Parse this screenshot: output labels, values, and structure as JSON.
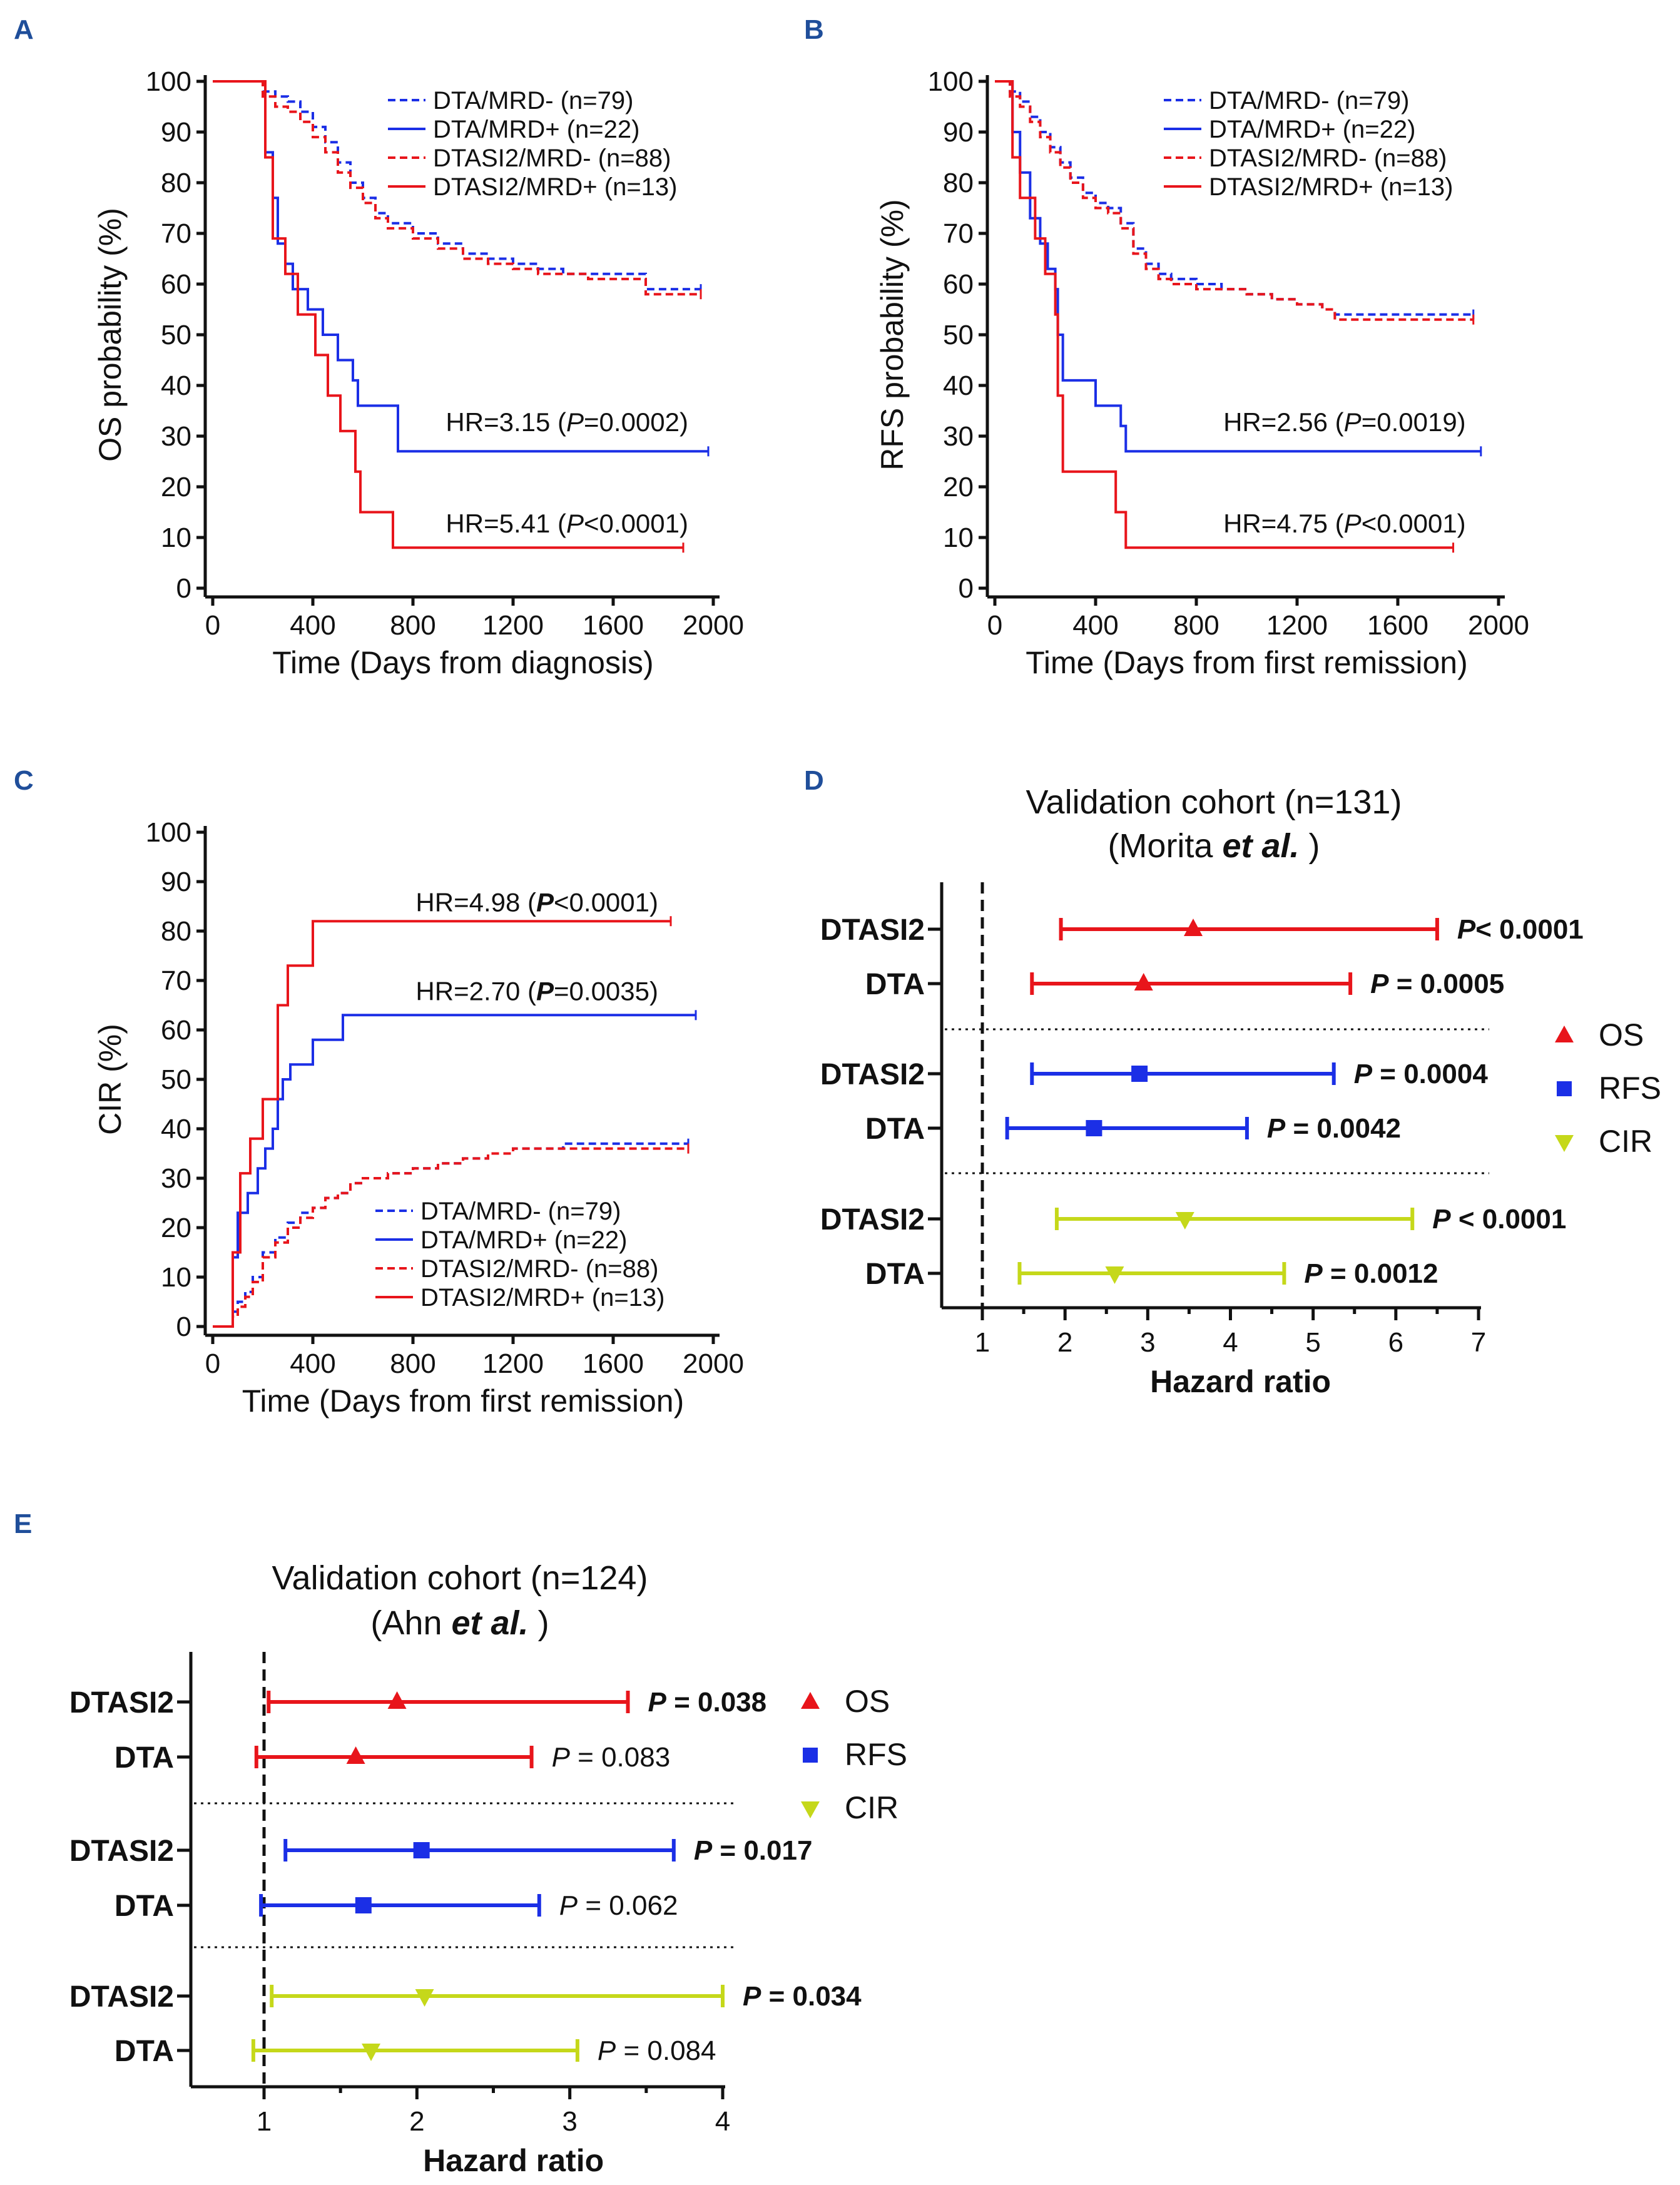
{
  "panels": {
    "A": {
      "label": "A"
    },
    "B": {
      "label": "B"
    },
    "C": {
      "label": "C"
    },
    "D": {
      "label": "D"
    },
    "E": {
      "label": "E"
    }
  },
  "colors": {
    "blue": "#1b2fe6",
    "red": "#e8151b",
    "lime": "#c5d81a",
    "black": "#111111"
  },
  "legend": [
    {
      "label": "DTA/MRD- (n=79)",
      "color": "#1b2fe6",
      "dashed": true
    },
    {
      "label": "DTA/MRD+ (n=22)",
      "color": "#1b2fe6",
      "dashed": false
    },
    {
      "label": "DTASI2/MRD- (n=88)",
      "color": "#e8151b",
      "dashed": true
    },
    {
      "label": "DTASI2/MRD+ (n=13)",
      "color": "#e8151b",
      "dashed": false
    }
  ],
  "forest_legend": [
    {
      "label": "OS",
      "symbol": "triangle-up",
      "color": "#e8151b"
    },
    {
      "label": "RFS",
      "symbol": "square",
      "color": "#1b2fe6"
    },
    {
      "label": "CIR",
      "symbol": "triangle-down",
      "color": "#c5d81a"
    }
  ],
  "chart_data": [
    {
      "panel": "A",
      "type": "line",
      "xlabel": "Time (Days from diagnosis)",
      "ylabel": "OS probability (%)",
      "xlim": [
        0,
        2000
      ],
      "ylim": [
        0,
        100
      ],
      "xticks": [
        "0",
        "400",
        "800",
        "1200",
        "1600",
        "2000"
      ],
      "yticks": [
        "0",
        "10",
        "20",
        "30",
        "40",
        "50",
        "60",
        "70",
        "80",
        "90",
        "100"
      ],
      "annotations": [
        {
          "pre": "HR=3.15 (",
          "p": "P",
          "post": "=0.0002)",
          "x": 1900,
          "y": 31,
          "bold": false
        },
        {
          "pre": "HR=5.41 (",
          "p": "P",
          "post": "<0.0001)",
          "x": 1900,
          "y": 11,
          "bold": false
        }
      ],
      "series": [
        {
          "name": "DTA/MRD- (n=79)",
          "dashed": true,
          "color": "#1b2fe6",
          "x": [
            0,
            180,
            200,
            250,
            300,
            350,
            400,
            450,
            500,
            550,
            600,
            650,
            700,
            800,
            900,
            1000,
            1100,
            1200,
            1300,
            1400,
            1500,
            1600,
            1700,
            1730,
            1800,
            1850,
            1950
          ],
          "y": [
            100,
            100,
            98,
            97,
            96,
            94,
            91,
            88,
            84,
            80,
            77,
            74,
            72,
            70,
            68,
            66,
            65,
            64,
            63,
            62,
            62,
            62,
            62,
            59,
            59,
            59,
            59
          ]
        },
        {
          "name": "DTA/MRD+ (n=22)",
          "dashed": false,
          "color": "#1b2fe6",
          "x": [
            0,
            180,
            210,
            240,
            260,
            290,
            320,
            380,
            440,
            500,
            560,
            580,
            740,
            1980
          ],
          "y": [
            100,
            100,
            86,
            77,
            68,
            64,
            59,
            55,
            50,
            45,
            41,
            36,
            27,
            27
          ]
        },
        {
          "name": "DTASI2/MRD- (n=88)",
          "dashed": true,
          "color": "#e8151b",
          "x": [
            0,
            180,
            200,
            250,
            300,
            350,
            400,
            450,
            500,
            550,
            600,
            650,
            700,
            800,
            900,
            1000,
            1100,
            1200,
            1300,
            1400,
            1500,
            1600,
            1700,
            1730,
            1800,
            1850,
            1950
          ],
          "y": [
            100,
            100,
            97,
            95,
            94,
            92,
            89,
            86,
            82,
            79,
            76,
            73,
            71,
            69,
            67,
            65,
            64,
            63,
            62,
            62,
            61,
            61,
            61,
            58,
            58,
            58,
            58
          ]
        },
        {
          "name": "DTASI2/MRD+ (n=13)",
          "dashed": false,
          "color": "#e8151b",
          "x": [
            0,
            180,
            210,
            240,
            290,
            340,
            410,
            460,
            510,
            570,
            590,
            720,
            1880
          ],
          "y": [
            100,
            100,
            85,
            69,
            62,
            54,
            46,
            38,
            31,
            23,
            15,
            8,
            8
          ]
        }
      ]
    },
    {
      "panel": "B",
      "type": "line",
      "xlabel": "Time (Days from first remission)",
      "ylabel": "RFS probability (%)",
      "xlim": [
        0,
        2000
      ],
      "ylim": [
        0,
        100
      ],
      "xticks": [
        "0",
        "400",
        "800",
        "1200",
        "1600",
        "2000"
      ],
      "yticks": [
        "0",
        "10",
        "20",
        "30",
        "40",
        "50",
        "60",
        "70",
        "80",
        "90",
        "100"
      ],
      "annotations": [
        {
          "pre": "HR=2.56 (",
          "p": "P",
          "post": "=0.0019)",
          "x": 1870,
          "y": 31,
          "bold": false
        },
        {
          "pre": "HR=4.75 (",
          "p": "P",
          "post": "<0.0001)",
          "x": 1870,
          "y": 11,
          "bold": false
        }
      ],
      "series": [
        {
          "name": "DTA/MRD- (n=79)",
          "dashed": true,
          "color": "#1b2fe6",
          "x": [
            0,
            30,
            60,
            100,
            140,
            180,
            220,
            260,
            300,
            350,
            400,
            450,
            500,
            550,
            600,
            650,
            700,
            800,
            900,
            1000,
            1100,
            1200,
            1300,
            1350,
            1400,
            1500,
            1600,
            1700,
            1800,
            1900
          ],
          "y": [
            100,
            100,
            98,
            96,
            93,
            90,
            87,
            84,
            81,
            78,
            76,
            75,
            72,
            67,
            64,
            62,
            61,
            60,
            59,
            58,
            57,
            56,
            55,
            54,
            54,
            54,
            54,
            54,
            54,
            54
          ]
        },
        {
          "name": "DTA/MRD+ (n=22)",
          "dashed": false,
          "color": "#1b2fe6",
          "x": [
            0,
            40,
            70,
            100,
            140,
            180,
            210,
            240,
            250,
            270,
            400,
            500,
            520,
            1930
          ],
          "y": [
            100,
            100,
            90,
            82,
            73,
            68,
            63,
            59,
            50,
            41,
            36,
            32,
            27,
            27
          ]
        },
        {
          "name": "DTASI2/MRD- (n=88)",
          "dashed": true,
          "color": "#e8151b",
          "x": [
            0,
            30,
            60,
            100,
            140,
            180,
            220,
            260,
            300,
            350,
            400,
            450,
            500,
            550,
            600,
            650,
            700,
            800,
            900,
            1000,
            1100,
            1200,
            1300,
            1350,
            1400,
            1500,
            1600,
            1700,
            1800,
            1900
          ],
          "y": [
            100,
            100,
            97,
            95,
            92,
            89,
            86,
            83,
            80,
            77,
            75,
            74,
            71,
            66,
            63,
            61,
            60,
            59,
            59,
            58,
            57,
            56,
            55,
            53,
            53,
            53,
            53,
            53,
            53,
            53
          ]
        },
        {
          "name": "DTASI2/MRD+ (n=13)",
          "dashed": false,
          "color": "#e8151b",
          "x": [
            0,
            40,
            70,
            100,
            160,
            200,
            240,
            250,
            270,
            380,
            480,
            520,
            1820
          ],
          "y": [
            100,
            100,
            85,
            77,
            69,
            62,
            54,
            38,
            23,
            23,
            15,
            8,
            8
          ]
        }
      ]
    },
    {
      "panel": "C",
      "type": "line",
      "xlabel": "Time (Days from first remission)",
      "ylabel": "CIR (%)",
      "xlim": [
        0,
        2000
      ],
      "ylim": [
        0,
        100
      ],
      "xticks": [
        "0",
        "400",
        "800",
        "1200",
        "1600",
        "2000"
      ],
      "yticks": [
        "0",
        "10",
        "20",
        "30",
        "40",
        "50",
        "60",
        "70",
        "80",
        "90",
        "100"
      ],
      "annotations": [
        {
          "pre": "HR=4.98 (",
          "p": "P",
          "post": "<0.0001)",
          "x": 1780,
          "y": 84,
          "bold": true
        },
        {
          "pre": "HR=2.70 (",
          "p": "P",
          "post": "=0.0035)",
          "x": 1780,
          "y": 66,
          "bold": true
        }
      ],
      "series": [
        {
          "name": "DTA/MRD- (n=79)",
          "dashed": true,
          "color": "#1b2fe6",
          "x": [
            0,
            60,
            80,
            100,
            130,
            160,
            200,
            250,
            300,
            350,
            400,
            450,
            500,
            550,
            600,
            700,
            800,
            900,
            1000,
            1100,
            1200,
            1300,
            1400,
            1500,
            1600,
            1700,
            1800,
            1900
          ],
          "y": [
            0,
            0,
            3,
            5,
            7,
            10,
            15,
            18,
            21,
            23,
            24,
            26,
            27,
            29,
            30,
            31,
            32,
            33,
            34,
            35,
            36,
            36,
            37,
            37,
            37,
            37,
            37,
            37
          ]
        },
        {
          "name": "DTA/MRD+ (n=22)",
          "dashed": false,
          "color": "#1b2fe6",
          "x": [
            0,
            60,
            80,
            100,
            140,
            180,
            210,
            240,
            260,
            280,
            310,
            400,
            500,
            520,
            1930
          ],
          "y": [
            0,
            0,
            14,
            23,
            27,
            32,
            36,
            40,
            46,
            50,
            53,
            58,
            58,
            63,
            63
          ]
        },
        {
          "name": "DTASI2/MRD- (n=88)",
          "dashed": true,
          "color": "#e8151b",
          "x": [
            0,
            60,
            80,
            100,
            130,
            160,
            200,
            250,
            300,
            350,
            400,
            450,
            500,
            550,
            600,
            700,
            800,
            900,
            1000,
            1100,
            1200,
            1300,
            1400,
            1500,
            1600,
            1700,
            1800,
            1900
          ],
          "y": [
            0,
            0,
            2,
            4,
            6,
            9,
            14,
            17,
            20,
            22,
            24,
            26,
            27,
            29,
            30,
            31,
            32,
            33,
            34,
            35,
            36,
            36,
            36,
            36,
            36,
            36,
            36,
            36
          ]
        },
        {
          "name": "DTASI2/MRD+ (n=13)",
          "dashed": false,
          "color": "#e8151b",
          "x": [
            0,
            60,
            80,
            110,
            150,
            200,
            260,
            300,
            400,
            1830
          ],
          "y": [
            0,
            0,
            15,
            31,
            38,
            46,
            65,
            73,
            82,
            82
          ]
        }
      ]
    },
    {
      "panel": "D",
      "type": "forest",
      "title": "Validation cohort (n=131)",
      "subtitle_pre": "(Morita ",
      "subtitle_ital": "et al.",
      "subtitle_post": " )",
      "xlabel": "Hazard ratio",
      "xlim": [
        0.5,
        7
      ],
      "xticks": [
        "1",
        "2",
        "3",
        "4",
        "5",
        "6",
        "7"
      ],
      "refline": 1,
      "rows": [
        {
          "label": "DTASI2",
          "outcome": "OS",
          "hr": 3.55,
          "lo": 1.95,
          "hi": 6.5,
          "p_pre": "",
          "p_ital": "P",
          "p_post": "< 0.0001",
          "bold": true
        },
        {
          "label": "DTA",
          "outcome": "OS",
          "hr": 2.95,
          "lo": 1.6,
          "hi": 5.45,
          "p_pre": "",
          "p_ital": "P",
          "p_post": " = 0.0005",
          "bold": true
        },
        {
          "label": "DTASI2",
          "outcome": "RFS",
          "hr": 2.9,
          "lo": 1.6,
          "hi": 5.25,
          "p_pre": "",
          "p_ital": "P",
          "p_post": " = 0.0004",
          "bold": true
        },
        {
          "label": "DTA",
          "outcome": "RFS",
          "hr": 2.35,
          "lo": 1.3,
          "hi": 4.2,
          "p_pre": "",
          "p_ital": "P",
          "p_post": " = 0.0042",
          "bold": true
        },
        {
          "label": "DTASI2",
          "outcome": "CIR",
          "hr": 3.45,
          "lo": 1.9,
          "hi": 6.2,
          "p_pre": "",
          "p_ital": "P",
          "p_post": " < 0.0001",
          "bold": true
        },
        {
          "label": "DTA",
          "outcome": "CIR",
          "hr": 2.6,
          "lo": 1.45,
          "hi": 4.65,
          "p_pre": "",
          "p_ital": "P",
          "p_post": " = 0.0012",
          "bold": true
        }
      ]
    },
    {
      "panel": "E",
      "type": "forest",
      "title": "Validation cohort (n=124)",
      "subtitle_pre": "(Ahn ",
      "subtitle_ital": "et al.",
      "subtitle_post": " )",
      "xlabel": "Hazard ratio",
      "xlim": [
        0.5,
        4
      ],
      "xticks": [
        "1",
        "2",
        "3",
        "4"
      ],
      "refline": 1,
      "rows": [
        {
          "label": "DTASI2",
          "outcome": "OS",
          "hr": 1.87,
          "lo": 1.03,
          "hi": 3.38,
          "p_pre": "",
          "p_ital": "P",
          "p_post": " = 0.038",
          "bold": true
        },
        {
          "label": "DTA",
          "outcome": "OS",
          "hr": 1.6,
          "lo": 0.95,
          "hi": 2.75,
          "p_pre": "",
          "p_ital": "P",
          "p_post": " = 0.083",
          "bold": false
        },
        {
          "label": "DTASI2",
          "outcome": "RFS",
          "hr": 2.03,
          "lo": 1.14,
          "hi": 3.68,
          "p_pre": "",
          "p_ital": "P",
          "p_post": " = 0.017",
          "bold": true
        },
        {
          "label": "DTA",
          "outcome": "RFS",
          "hr": 1.65,
          "lo": 0.98,
          "hi": 2.8,
          "p_pre": "",
          "p_ital": "P",
          "p_post": " = 0.062",
          "bold": false
        },
        {
          "label": "DTASI2",
          "outcome": "CIR",
          "hr": 2.05,
          "lo": 1.05,
          "hi": 4.0,
          "p_pre": "",
          "p_ital": "P",
          "p_post": " = 0.034",
          "bold": true
        },
        {
          "label": "DTA",
          "outcome": "CIR",
          "hr": 1.7,
          "lo": 0.93,
          "hi": 3.05,
          "p_pre": "",
          "p_ital": "P",
          "p_post": " = 0.084",
          "bold": false
        }
      ]
    }
  ]
}
